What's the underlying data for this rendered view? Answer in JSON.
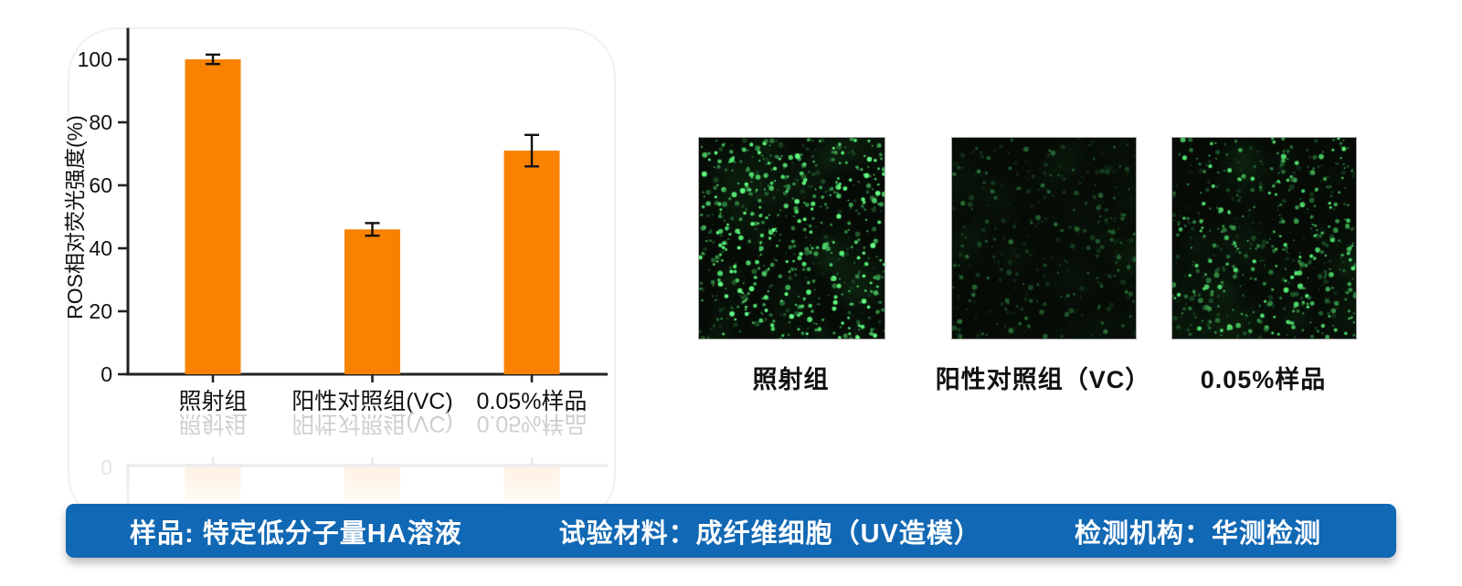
{
  "chart_data": {
    "type": "bar",
    "title": "",
    "categories": [
      "照射组",
      "阳性对照组(VC)",
      "0.05%样品"
    ],
    "values": [
      100,
      46,
      71
    ],
    "errors": [
      1.5,
      2,
      5
    ],
    "xlabel": "",
    "ylabel": "ROS相对荧光强度(%)",
    "yticks": [
      0,
      20,
      40,
      60,
      80,
      100
    ],
    "ylim": [
      0,
      110
    ],
    "grid": false,
    "legend": "none",
    "bar_color": "#F98200",
    "axis_color": "#222222",
    "has_mirror_reflection": true
  },
  "micrographs": {
    "dot_color": "#4FD96B",
    "background": "#060B06",
    "items": [
      {
        "label": "照射组",
        "dot_density": 680,
        "brightness": 1.0
      },
      {
        "label": "阳性对照组（VC）",
        "dot_density": 400,
        "brightness": 0.5
      },
      {
        "label": "0.05%样品",
        "dot_density": 560,
        "brightness": 0.85
      }
    ]
  },
  "footer": {
    "background": "#1168B4",
    "text_color": "#FFFFFF",
    "items": [
      {
        "label": "样品: 特定低分子量HA溶液"
      },
      {
        "label": "试验材料：成纤维细胞（UV造模）"
      },
      {
        "label": "检测机构：华测检测"
      }
    ]
  }
}
